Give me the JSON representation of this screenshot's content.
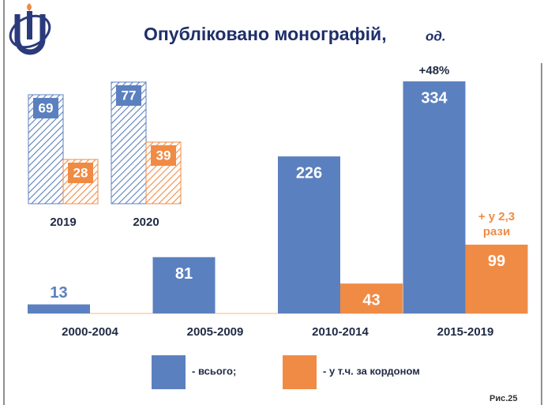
{
  "chart_data": [
    {
      "type": "bar",
      "title": "Опубліковано монографій,",
      "unit": "од.",
      "categories": [
        "2000-2004",
        "2005-2009",
        "2010-2014",
        "2015-2019"
      ],
      "series": [
        {
          "name": "- всього;",
          "color": "#5b80bf",
          "values": [
            13,
            81,
            226,
            334
          ]
        },
        {
          "name": "- у т.ч. за кордоном",
          "color": "#f08b45",
          "values": [
            null,
            null,
            43,
            99
          ]
        }
      ],
      "annotations": [
        "+48%",
        "+ у 2,3",
        "рази"
      ],
      "figure_label": "Рис.25"
    },
    {
      "type": "bar",
      "hatched": true,
      "categories": [
        "2019",
        "2020"
      ],
      "series": [
        {
          "name": "- всього;",
          "color": "#5b80bf",
          "values": [
            69,
            77
          ]
        },
        {
          "name": "- у т.ч. за кордоном",
          "color": "#f08b45",
          "values": [
            28,
            39
          ]
        }
      ]
    }
  ]
}
